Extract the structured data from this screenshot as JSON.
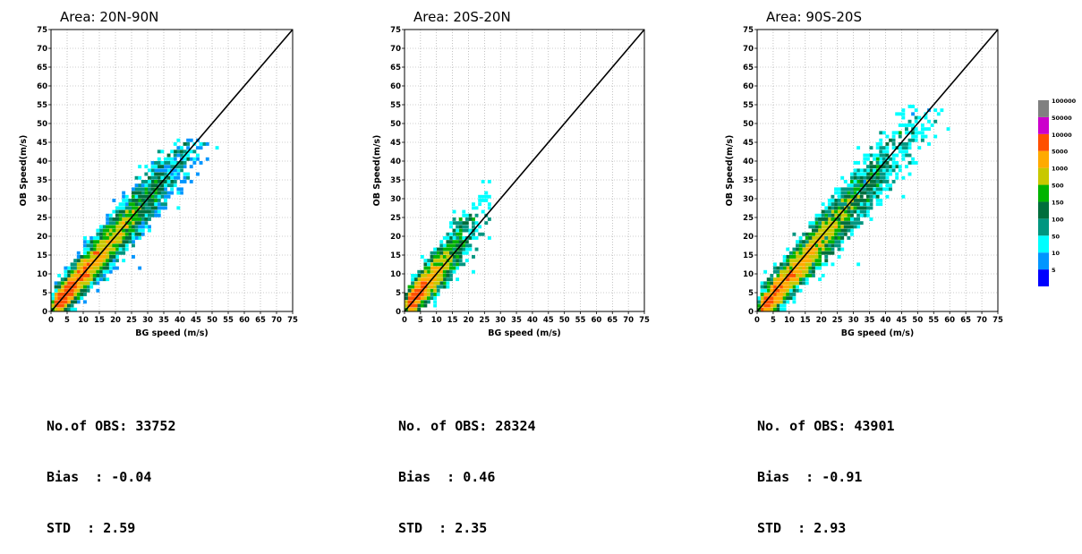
{
  "panels": [
    {
      "title": "Area: 20N-90N",
      "stats": {
        "obs": "No.of OBS: 33752",
        "bias": "Bias  : -0.04",
        "std": "STD  : 2.59"
      }
    },
    {
      "title": "Area: 20S-20N",
      "stats": {
        "obs": "No. of OBS: 28324",
        "bias": "Bias  : 0.46",
        "std": "STD  : 2.35"
      }
    },
    {
      "title": "Area: 90S-20S",
      "stats": {
        "obs": "No. of OBS: 43901",
        "bias": "Bias  : -0.91",
        "std": "STD  : 2.93"
      }
    }
  ],
  "chart_data": [
    {
      "type": "heatmap",
      "title": "Area: 20N-90N",
      "xlabel": "BG speed (m/s)",
      "ylabel": "OB Speed(m/s)",
      "xlim": [
        0,
        75
      ],
      "ylim": [
        0,
        75
      ],
      "ticks": [
        0,
        5,
        10,
        15,
        20,
        25,
        30,
        35,
        40,
        45,
        50,
        55,
        60,
        65,
        70,
        75
      ],
      "grid": true,
      "reference_line": "y = x",
      "density_region": {
        "x_max": 52,
        "y_max": 46,
        "spread": 2.59,
        "bias": -0.04
      }
    },
    {
      "type": "heatmap",
      "title": "Area: 20S-20N",
      "xlabel": "BG speed (m/s)",
      "ylabel": "OB Speed(m/s)",
      "xlim": [
        0,
        75
      ],
      "ylim": [
        0,
        75
      ],
      "ticks": [
        0,
        5,
        10,
        15,
        20,
        25,
        30,
        35,
        40,
        45,
        50,
        55,
        60,
        65,
        70,
        75
      ],
      "grid": true,
      "reference_line": "y = x",
      "density_region": {
        "x_max": 27,
        "y_max": 36,
        "spread": 2.35,
        "bias": 0.46
      }
    },
    {
      "type": "heatmap",
      "title": "Area: 90S-20S",
      "xlabel": "BG speed (m/s)",
      "ylabel": "OB Speed(m/s)",
      "xlim": [
        0,
        75
      ],
      "ylim": [
        0,
        75
      ],
      "ticks": [
        0,
        5,
        10,
        15,
        20,
        25,
        30,
        35,
        40,
        45,
        50,
        55,
        60,
        65,
        70,
        75
      ],
      "grid": true,
      "reference_line": "y = x",
      "density_region": {
        "x_max": 60,
        "y_max": 55,
        "spread": 2.93,
        "bias": -0.91
      }
    }
  ],
  "colorbar": {
    "colors": [
      "#0000ff",
      "#0096ff",
      "#00ffff",
      "#009680",
      "#006e3c",
      "#00b400",
      "#c8c800",
      "#ffaa00",
      "#ff5000",
      "#cc00cc",
      "#808080"
    ],
    "labels": [
      "5",
      "10",
      "50",
      "100",
      "150",
      "500",
      "1000",
      "5000",
      "10000",
      "50000",
      "100000"
    ]
  }
}
